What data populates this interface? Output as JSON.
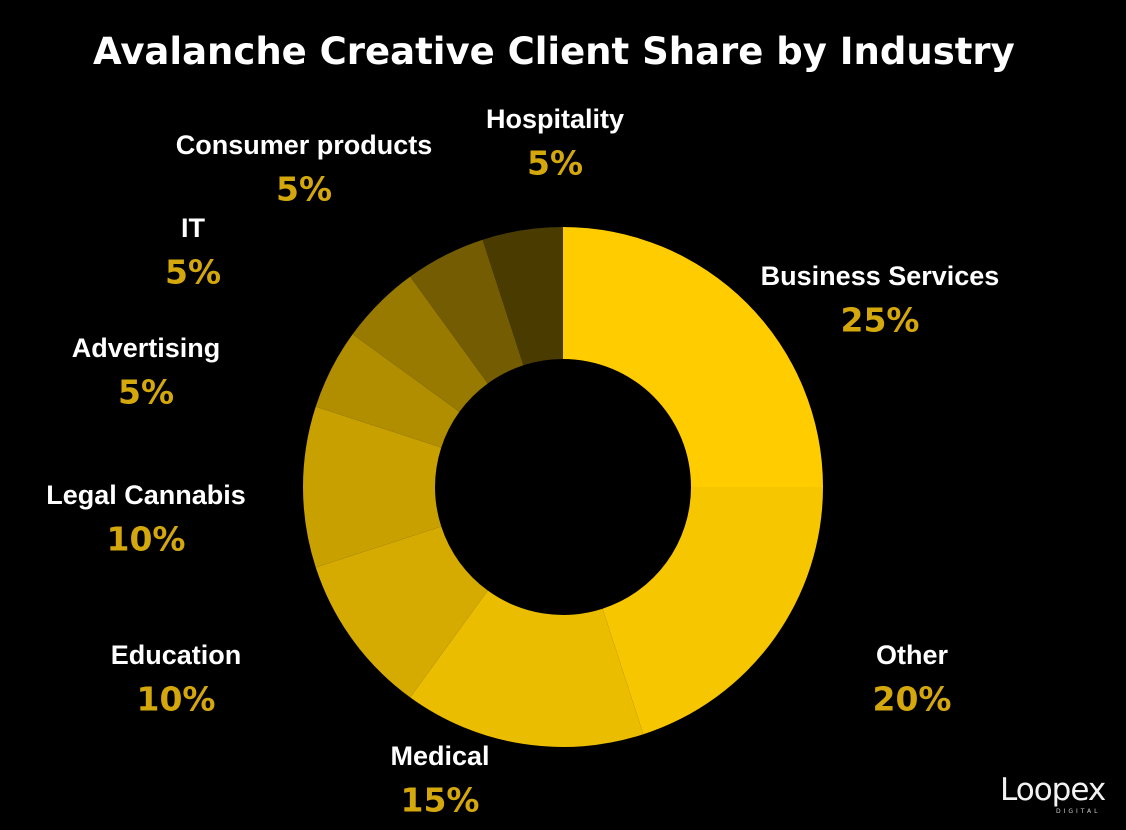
{
  "chart_data": {
    "type": "pie",
    "variant": "donut",
    "title": "Avalanche Creative Client Share by Industry",
    "start": "12 o'clock, clockwise",
    "label_color": "#D4A80C",
    "name_color": "#FFFFFF",
    "background": "#000000",
    "slices": [
      {
        "name": "Business Services",
        "value": 25,
        "label": "25%",
        "color": "#FFCC00"
      },
      {
        "name": "Other",
        "value": 20,
        "label": "20%",
        "color": "#F6C601"
      },
      {
        "name": "Medical",
        "value": 15,
        "label": "15%",
        "color": "#EBBD00"
      },
      {
        "name": "Education",
        "value": 10,
        "label": "10%",
        "color": "#D5AB01"
      },
      {
        "name": "Legal Cannabis",
        "value": 10,
        "label": "10%",
        "color": "#C8A100"
      },
      {
        "name": "Advertising",
        "value": 5,
        "label": "5%",
        "color": "#B18E00"
      },
      {
        "name": "IT",
        "value": 5,
        "label": "5%",
        "color": "#987A00"
      },
      {
        "name": "Consumer products",
        "value": 5,
        "label": "5%",
        "color": "#735C01"
      },
      {
        "name": "Hospitality",
        "value": 5,
        "label": "5%",
        "color": "#4A3C00"
      }
    ]
  },
  "branding": {
    "logo_text": "Loopex",
    "logo_subtext": "DIGITAL"
  }
}
